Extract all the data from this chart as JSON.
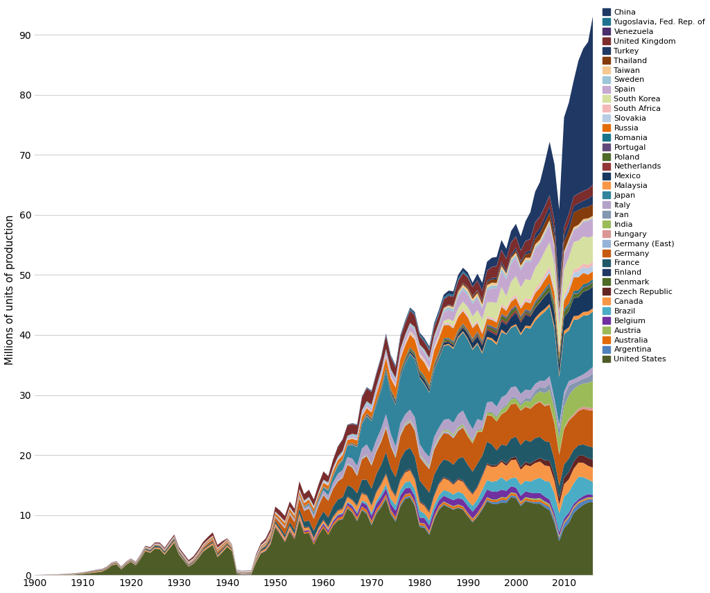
{
  "ylabel": "Millions of units of production",
  "ylim": [
    0,
    95
  ],
  "yticks": [
    0,
    10,
    20,
    30,
    40,
    50,
    60,
    70,
    80,
    90
  ],
  "xticks": [
    1900,
    1910,
    1920,
    1930,
    1940,
    1950,
    1960,
    1970,
    1980,
    1990,
    2000,
    2010
  ],
  "xlim": [
    1900,
    2016
  ],
  "stack_order": [
    "United States",
    "Argentina",
    "Australia",
    "Austria",
    "Belgium",
    "Brazil",
    "Canada",
    "Czech Republic",
    "Denmark",
    "Finland",
    "France",
    "Germany",
    "Germany (East)",
    "Hungary",
    "India",
    "Iran",
    "Italy",
    "Japan",
    "Malaysia",
    "Mexico",
    "Netherlands",
    "Poland",
    "Portugal",
    "Romania",
    "Russia",
    "Slovakia",
    "South Africa",
    "South Korea",
    "Spain",
    "Sweden",
    "Taiwan",
    "Thailand",
    "Turkey",
    "United Kingdom",
    "Venezuela",
    "Yugoslavia, Fed. Rep. of",
    "China"
  ],
  "colors": {
    "China": "#1f3864",
    "Yugoslavia, Fed. Rep. of": "#1f7391",
    "Venezuela": "#4b2d6b",
    "United Kingdom": "#7b2c2c",
    "Turkey": "#203864",
    "Thailand": "#843c0c",
    "Taiwan": "#f4c992",
    "Sweden": "#9dc6d8",
    "Spain": "#c5a8d0",
    "South Korea": "#d6e0a0",
    "South Africa": "#f4b8b8",
    "Slovakia": "#b8cce4",
    "Russia": "#e36c09",
    "Romania": "#17748a",
    "Portugal": "#60497a",
    "Poland": "#4e6b28",
    "Netherlands": "#943634",
    "Mexico": "#17375e",
    "Malaysia": "#f79646",
    "Japan": "#31849b",
    "Italy": "#b3a2c7",
    "Iran": "#8496b0",
    "India": "#9bbb59",
    "Hungary": "#d99694",
    "Germany (East)": "#95b3d7",
    "Germany": "#c55a11",
    "France": "#215868",
    "Finland": "#1f3864",
    "Denmark": "#4e6b28",
    "Czech Republic": "#632523",
    "Canada": "#f79646",
    "Brazil": "#4bacc6",
    "Belgium": "#7030a0",
    "Austria": "#9bbb59",
    "Australia": "#e36c09",
    "Argentina": "#4f81bd",
    "United States": "#4e5c28"
  }
}
